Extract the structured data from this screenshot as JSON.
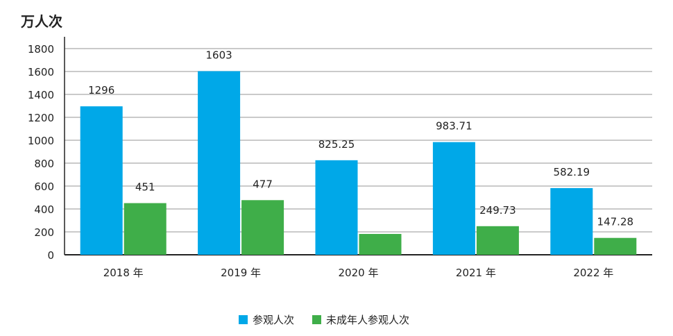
{
  "chart_data": {
    "type": "bar",
    "ylabel": "万人次",
    "categories": [
      "2018 年",
      "2019 年",
      "2020 年",
      "2021 年",
      "2022 年"
    ],
    "series": [
      {
        "name": "参观人次",
        "color": "#00a8e8",
        "values": [
          1296,
          1603,
          825.25,
          983.71,
          582.19
        ],
        "labels": [
          "1296",
          "1603",
          "825.25",
          "983.71",
          "582.19"
        ]
      },
      {
        "name": "未成年人参观人次",
        "color": "#3fae49",
        "values": [
          451,
          477,
          182,
          249.73,
          147.28
        ],
        "labels": [
          "451",
          "477",
          null,
          "249.73",
          "147.28"
        ]
      }
    ],
    "ylim": [
      0,
      1800
    ],
    "yticks": [
      0,
      200,
      400,
      600,
      800,
      1000,
      1200,
      1400,
      1600,
      1800
    ],
    "grid": true,
    "legend": "bottom-center"
  }
}
